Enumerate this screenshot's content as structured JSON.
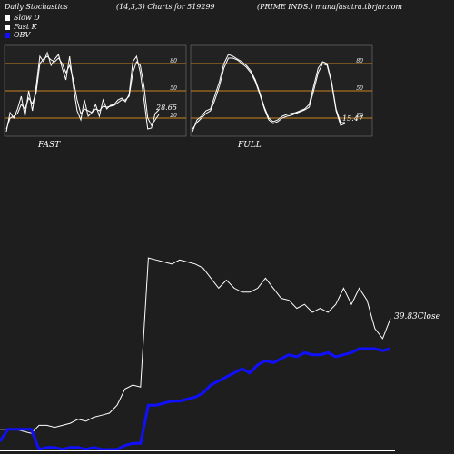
{
  "header": {
    "left": "Daily Stochastics",
    "mid": "(14,3,3) Charts for 519299",
    "right": "(PRIME INDS.) munafasutra.tbrjar.com"
  },
  "legend": [
    {
      "label": "Slow  D",
      "color": "#ffffff"
    },
    {
      "label": "Fast K",
      "color": "#ffffff"
    },
    {
      "label": "OBV",
      "color": "#1010ff"
    }
  ],
  "colors": {
    "panel_bg": "#222222",
    "level_line": "#c8821e",
    "price": "#ffffff",
    "obv": "#1010ff",
    "bg": "#1e1e1e"
  },
  "chart_data": [
    {
      "type": "line",
      "title": "FAST",
      "ylim": [
        0,
        100
      ],
      "levels": [
        20,
        50,
        80
      ],
      "level_labels": [
        "20",
        "50",
        "80"
      ],
      "end_value_label": "28.65",
      "series": [
        {
          "values": [
            5,
            26,
            20,
            30,
            44,
            22,
            50,
            28,
            55,
            88,
            82,
            92,
            78,
            85,
            90,
            75,
            62,
            88,
            55,
            28,
            18,
            40,
            22,
            26,
            35,
            22,
            40,
            30,
            34,
            35,
            40,
            42,
            38,
            46,
            82,
            88,
            70,
            40,
            8,
            9,
            25,
            29
          ]
        },
        {
          "values": [
            8,
            20,
            22,
            25,
            35,
            30,
            42,
            36,
            48,
            80,
            85,
            88,
            84,
            82,
            86,
            80,
            70,
            78,
            62,
            40,
            25,
            30,
            28,
            26,
            30,
            28,
            33,
            32,
            33,
            34,
            37,
            40,
            40,
            44,
            70,
            82,
            78,
            55,
            20,
            12,
            18,
            24
          ]
        }
      ]
    },
    {
      "type": "line",
      "title": "FULL",
      "ylim": [
        0,
        100
      ],
      "levels": [
        20,
        50,
        80
      ],
      "level_labels": [
        "20",
        "50",
        "80"
      ],
      "end_value_label": "15.47",
      "series": [
        {
          "values": [
            5,
            18,
            22,
            28,
            30,
            45,
            60,
            80,
            90,
            88,
            85,
            82,
            78,
            72,
            62,
            48,
            32,
            20,
            16,
            18,
            22,
            24,
            25,
            26,
            28,
            30,
            35,
            55,
            75,
            82,
            80,
            60,
            30,
            15,
            15
          ]
        },
        {
          "values": [
            8,
            15,
            20,
            25,
            28,
            40,
            55,
            75,
            86,
            86,
            84,
            80,
            76,
            70,
            60,
            46,
            30,
            18,
            14,
            16,
            20,
            22,
            23,
            25,
            27,
            29,
            32,
            50,
            70,
            80,
            78,
            58,
            28,
            12,
            14
          ]
        }
      ]
    },
    {
      "type": "line",
      "end_value_label": "39.83Close",
      "series": [
        {
          "values": [
            10,
            10,
            10,
            9,
            8,
            12,
            12,
            11,
            12,
            13,
            15,
            14,
            16,
            17,
            18,
            22,
            30,
            32,
            31,
            95,
            94,
            93,
            92,
            94,
            93,
            92,
            90,
            85,
            80,
            84,
            80,
            78,
            78,
            80,
            85,
            80,
            75,
            74,
            70,
            72,
            68,
            70,
            68,
            72,
            80,
            72,
            80,
            74,
            60,
            55,
            65
          ]
        },
        {
          "values": [
            4,
            10,
            10,
            10,
            10,
            0,
            1,
            1,
            0,
            1,
            1,
            0,
            1,
            0,
            0,
            0,
            2,
            3,
            3,
            22,
            22,
            23,
            24,
            24,
            25,
            26,
            28,
            32,
            34,
            36,
            38,
            40,
            38,
            42,
            44,
            43,
            45,
            47,
            46,
            48,
            47,
            47,
            48,
            46,
            47,
            48,
            50,
            50,
            50,
            49,
            50
          ]
        }
      ]
    }
  ]
}
